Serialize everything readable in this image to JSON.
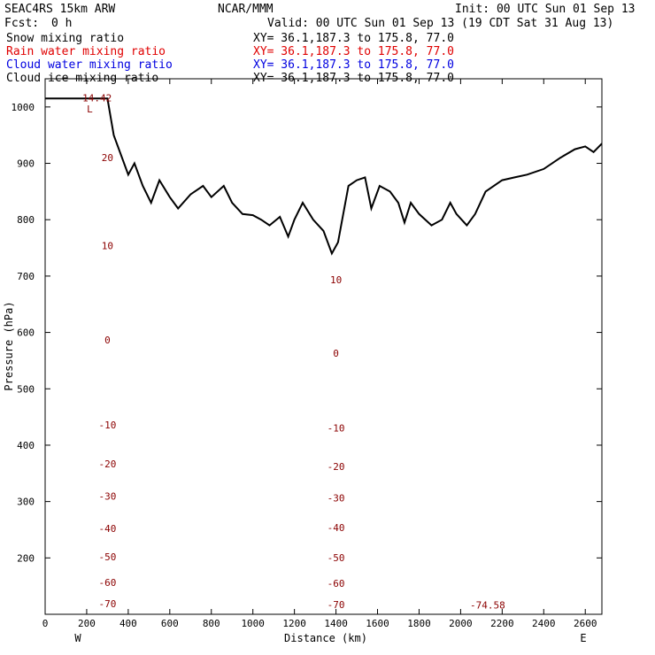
{
  "header": {
    "model": "SEAC4RS 15km ARW",
    "center": "NCAR/MMM",
    "init": "Init: 00 UTC Sun 01 Sep 13",
    "fcst_label": "Fcst:",
    "fcst_value": "0 h",
    "valid": "Valid: 00 UTC Sun 01 Sep 13 (19 CDT Sat 31 Aug 13)"
  },
  "legend": [
    {
      "name": "Snow mixing ratio",
      "xy": "XY=  36.1,187.3 to 175.8, 77.0",
      "color": "#000000"
    },
    {
      "name": "Rain water mixing ratio",
      "xy": "XY=  36.1,187.3 to 175.8, 77.0",
      "color": "#e00000"
    },
    {
      "name": "Cloud water mixing ratio",
      "xy": "XY=  36.1,187.3 to 175.8, 77.0",
      "color": "#0000e0"
    },
    {
      "name": "Cloud ice mixing ratio",
      "xy": "XY=  36.1,187.3 to 175.8, 77.0",
      "color": "#000000"
    }
  ],
  "chart_data": {
    "type": "line",
    "xlabel": "Distance (km)",
    "ylabel": "Pressure (hPa)",
    "xlim": [
      0,
      2680
    ],
    "ylim": [
      1050,
      100
    ],
    "x_ticks": [
      0,
      200,
      400,
      600,
      800,
      1000,
      1200,
      1400,
      1600,
      1800,
      2000,
      2200,
      2400,
      2600
    ],
    "y_ticks": [
      200,
      300,
      400,
      500,
      600,
      700,
      800,
      900,
      1000
    ],
    "endpoint_labels": {
      "left": "W",
      "right": "E"
    },
    "annotations": [
      {
        "text": "-74.58",
        "x": 2130,
        "y": 110
      },
      {
        "text": "14.42",
        "x": 250,
        "y": 1010
      }
    ],
    "low_marker": {
      "text": "L",
      "x": 215,
      "y": 990
    },
    "contour_color": "#8b0000",
    "terrain": {
      "distance": [
        0,
        120,
        300,
        330,
        400,
        430,
        470,
        510,
        550,
        600,
        640,
        700,
        760,
        800,
        860,
        900,
        950,
        1000,
        1040,
        1080,
        1130,
        1170,
        1200,
        1240,
        1290,
        1340,
        1380,
        1410,
        1430,
        1460,
        1500,
        1540,
        1570,
        1610,
        1660,
        1700,
        1730,
        1760,
        1800,
        1860,
        1910,
        1950,
        1980,
        2030,
        2070,
        2120,
        2200,
        2260,
        2320,
        2400,
        2480,
        2550,
        2600,
        2640,
        2680
      ],
      "pressure": [
        1015,
        1015,
        1015,
        950,
        880,
        900,
        860,
        830,
        870,
        840,
        820,
        845,
        860,
        840,
        860,
        830,
        810,
        808,
        800,
        790,
        805,
        770,
        800,
        830,
        800,
        780,
        740,
        760,
        800,
        860,
        870,
        875,
        820,
        860,
        850,
        830,
        795,
        830,
        810,
        790,
        800,
        830,
        810,
        790,
        810,
        850,
        870,
        875,
        880,
        890,
        910,
        925,
        930,
        920,
        935
      ]
    },
    "contours": [
      {
        "value": -70,
        "label": "-70",
        "pressure": [
          122,
          120,
          118,
          118,
          117,
          117,
          117,
          117,
          118,
          118,
          117,
          116,
          115,
          115
        ]
      },
      {
        "value": -60,
        "label": "-60",
        "pressure": [
          162,
          158,
          154,
          152,
          152,
          153,
          154,
          155,
          155,
          154,
          152,
          150,
          149,
          149
        ]
      },
      {
        "value": -50,
        "label": "-50",
        "pressure": [
          208,
          204,
          200,
          198,
          197,
          198,
          200,
          201,
          200,
          198,
          195,
          193,
          192,
          192
        ]
      },
      {
        "value": -40,
        "label": "-40",
        "pressure": [
          258,
          254,
          250,
          248,
          248,
          250,
          252,
          254,
          252,
          250,
          248,
          246,
          245,
          244
        ]
      },
      {
        "value": -30,
        "label": "-30",
        "pressure": [
          318,
          312,
          306,
          303,
          302,
          304,
          306,
          307,
          305,
          302,
          300,
          298,
          297,
          296
        ]
      },
      {
        "value": -20,
        "label": "-20",
        "pressure": [
          378,
          370,
          363,
          359,
          358,
          360,
          362,
          362,
          360,
          356,
          352,
          350,
          348,
          347
        ]
      },
      {
        "value": -10,
        "label": "-10",
        "pressure": [
          450,
          440,
          432,
          428,
          428,
          430,
          432,
          430,
          428,
          424,
          420,
          416,
          414,
          412
        ]
      },
      {
        "value": 0,
        "label": "0",
        "pressure": [
          606,
          592,
          580,
          574,
          572,
          570,
          568,
          562,
          556,
          550,
          545,
          538,
          535,
          535
        ]
      },
      {
        "value": 10,
        "label": "10",
        "pressure": [
          800,
          768,
          738,
          722,
          712,
          706,
          700,
          692,
          684,
          676,
          672,
          664,
          658,
          654
        ]
      },
      {
        "value": 20,
        "label": "20",
        "pressure": [
          950,
          920,
          898,
          860,
          840,
          820,
          810,
          790,
          770,
          760,
          752,
          742,
          736,
          732
        ]
      }
    ]
  }
}
